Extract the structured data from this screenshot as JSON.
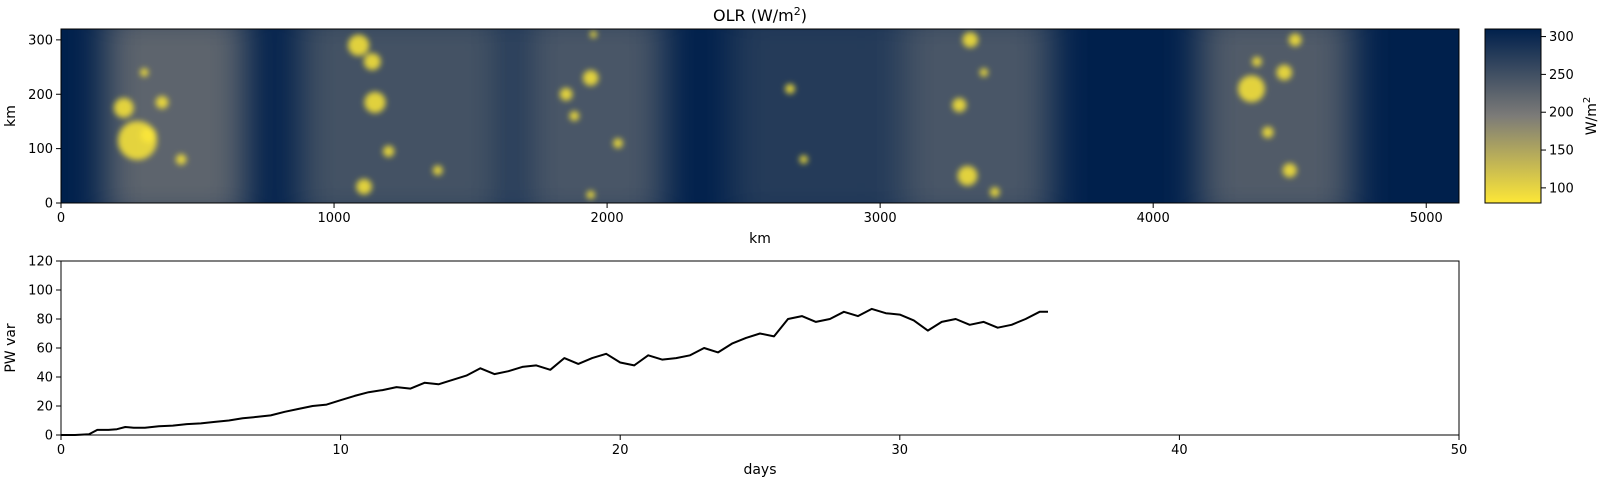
{
  "chart_data": [
    {
      "type": "heatmap",
      "title": "OLR (W/m²)",
      "title_base": "OLR (W/m",
      "title_sup": "2",
      "title_end": ")",
      "xlabel": "km",
      "ylabel": "km",
      "xlim": [
        0,
        5120
      ],
      "ylim": [
        0,
        320
      ],
      "xticks": [
        0,
        1000,
        2000,
        3000,
        4000,
        5000
      ],
      "yticks": [
        0,
        100,
        200,
        300
      ],
      "grid": false,
      "colormap": "cividis",
      "colorbar": {
        "label": "W/m²",
        "label_base": "W/m",
        "label_sup": "2",
        "range": [
          80,
          310
        ],
        "ticks": [
          100,
          150,
          200,
          250,
          300
        ],
        "low_color": "#fde737",
        "mid_color": "#7c7b78",
        "high_color": "#00204c"
      },
      "convective_bands_km": [
        {
          "center": 420,
          "half_width": 260,
          "strength": 0.75
        },
        {
          "center": 1250,
          "half_width": 380,
          "strength": 0.55
        },
        {
          "center": 1950,
          "half_width": 260,
          "strength": 0.6
        },
        {
          "center": 2750,
          "half_width": 300,
          "strength": 0.3
        },
        {
          "center": 3350,
          "half_width": 280,
          "strength": 0.6
        },
        {
          "center": 4450,
          "half_width": 280,
          "strength": 0.65
        }
      ],
      "cold_cloud_cells": [
        {
          "x": 280,
          "y": 115,
          "r": 55
        },
        {
          "x": 230,
          "y": 175,
          "r": 28
        },
        {
          "x": 320,
          "y": 125,
          "r": 22
        },
        {
          "x": 370,
          "y": 185,
          "r": 18
        },
        {
          "x": 305,
          "y": 240,
          "r": 12
        },
        {
          "x": 440,
          "y": 80,
          "r": 15
        },
        {
          "x": 1090,
          "y": 290,
          "r": 30
        },
        {
          "x": 1140,
          "y": 260,
          "r": 24
        },
        {
          "x": 1150,
          "y": 185,
          "r": 30
        },
        {
          "x": 1110,
          "y": 30,
          "r": 22
        },
        {
          "x": 1200,
          "y": 95,
          "r": 16
        },
        {
          "x": 1380,
          "y": 60,
          "r": 14
        },
        {
          "x": 1850,
          "y": 200,
          "r": 18
        },
        {
          "x": 1940,
          "y": 230,
          "r": 22
        },
        {
          "x": 1880,
          "y": 160,
          "r": 14
        },
        {
          "x": 1940,
          "y": 15,
          "r": 12
        },
        {
          "x": 1950,
          "y": 310,
          "r": 10
        },
        {
          "x": 2040,
          "y": 110,
          "r": 14
        },
        {
          "x": 2670,
          "y": 210,
          "r": 14
        },
        {
          "x": 2720,
          "y": 80,
          "r": 12
        },
        {
          "x": 3290,
          "y": 180,
          "r": 20
        },
        {
          "x": 3320,
          "y": 50,
          "r": 28
        },
        {
          "x": 3330,
          "y": 300,
          "r": 22
        },
        {
          "x": 3380,
          "y": 240,
          "r": 12
        },
        {
          "x": 3420,
          "y": 20,
          "r": 14
        },
        {
          "x": 4360,
          "y": 210,
          "r": 38
        },
        {
          "x": 4480,
          "y": 240,
          "r": 22
        },
        {
          "x": 4420,
          "y": 130,
          "r": 16
        },
        {
          "x": 4380,
          "y": 260,
          "r": 14
        },
        {
          "x": 4500,
          "y": 60,
          "r": 20
        },
        {
          "x": 4520,
          "y": 300,
          "r": 18
        }
      ]
    },
    {
      "type": "line",
      "xlabel": "days",
      "ylabel": "PW var",
      "xlim": [
        0,
        50
      ],
      "ylim": [
        0,
        120
      ],
      "xticks": [
        0,
        10,
        20,
        30,
        40,
        50
      ],
      "yticks": [
        0,
        20,
        40,
        60,
        80,
        100,
        120
      ],
      "grid": false,
      "series": [
        {
          "color": "#000000",
          "x": [
            0,
            0.5,
            1.0,
            1.3,
            1.7,
            2.0,
            2.3,
            2.6,
            3.0,
            3.5,
            4.0,
            4.5,
            5.0,
            5.5,
            6.0,
            6.5,
            7.0,
            7.5,
            8.0,
            8.5,
            9.0,
            9.5,
            10.0,
            10.5,
            11.0,
            11.5,
            12.0,
            12.5,
            13.0,
            13.5,
            14.0,
            14.5,
            15.0,
            15.5,
            16.0,
            16.5,
            17.0,
            17.5,
            18.0,
            18.5,
            19.0,
            19.5,
            20.0,
            20.5,
            21.0,
            21.5,
            22.0,
            22.5,
            23.0,
            23.5,
            24.0,
            24.5,
            25.0,
            25.5,
            26.0,
            26.5,
            27.0,
            27.5,
            28.0,
            28.5,
            29.0,
            29.5,
            30.0,
            30.5,
            31.0,
            31.5,
            32.0,
            32.5,
            33.0,
            33.5,
            34.0,
            34.5,
            35.0,
            35.3
          ],
          "y": [
            0,
            0,
            0.5,
            3.5,
            3.5,
            4,
            5.5,
            5,
            5,
            6,
            6.5,
            7.5,
            8,
            9,
            10,
            11.5,
            12.5,
            13.5,
            16,
            18,
            20,
            21,
            24,
            27,
            29.5,
            31,
            33,
            32,
            36,
            35,
            38,
            41,
            46,
            42,
            44,
            47,
            48,
            45,
            53,
            49,
            53,
            56,
            50,
            48,
            55,
            52,
            53,
            55,
            60,
            57,
            63,
            67,
            70,
            68,
            80,
            82,
            78,
            80,
            85,
            82,
            87,
            84,
            83,
            79,
            72,
            78,
            80,
            76,
            78,
            74,
            76,
            80,
            85,
            85
          ]
        }
      ]
    }
  ]
}
